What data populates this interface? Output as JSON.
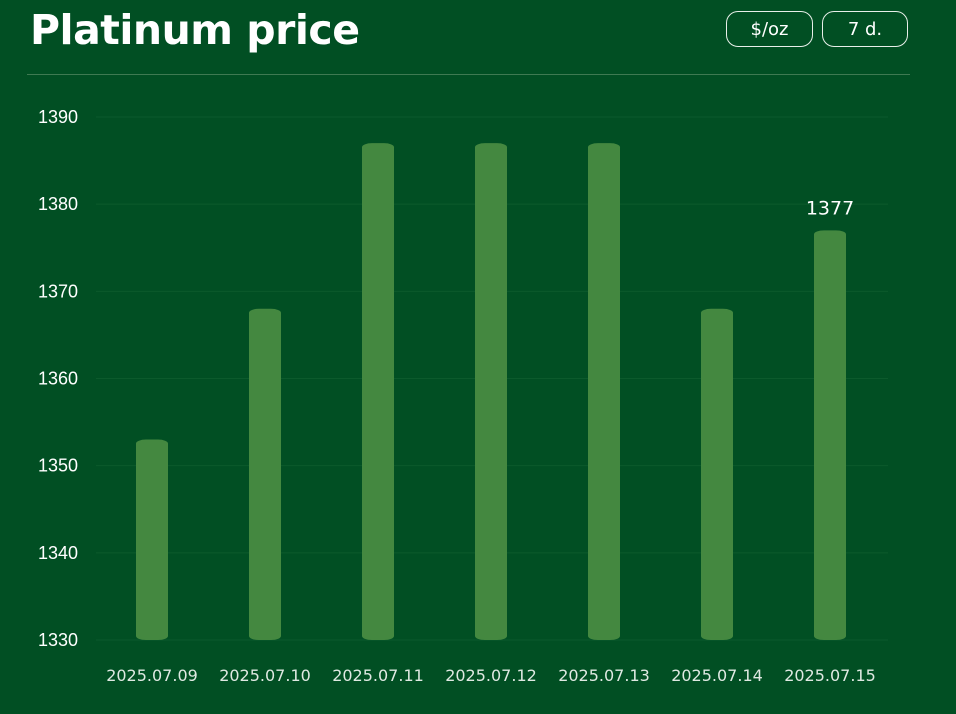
{
  "header": {
    "title": "Platinum price",
    "unit_button": "$/oz",
    "range_button": "7 d."
  },
  "colors": {
    "background": "#014f23",
    "bar": "#448840",
    "gridline": "#0c5a2c",
    "divider": "#3f7a52"
  },
  "chart_data": {
    "type": "bar",
    "title": "Platinum price",
    "xlabel": "",
    "ylabel": "",
    "categories": [
      "2025.07.09",
      "2025.07.10",
      "2025.07.11",
      "2025.07.12",
      "2025.07.13",
      "2025.07.14",
      "2025.07.15"
    ],
    "values": [
      1353,
      1368,
      1387,
      1387,
      1387,
      1368,
      1377
    ],
    "ylim": [
      1330,
      1390
    ],
    "yticks": [
      1330,
      1340,
      1350,
      1360,
      1370,
      1380,
      1390
    ],
    "grid": true,
    "legend": "none",
    "annotations": [
      {
        "category": "2025.07.15",
        "text": "1377"
      }
    ]
  }
}
